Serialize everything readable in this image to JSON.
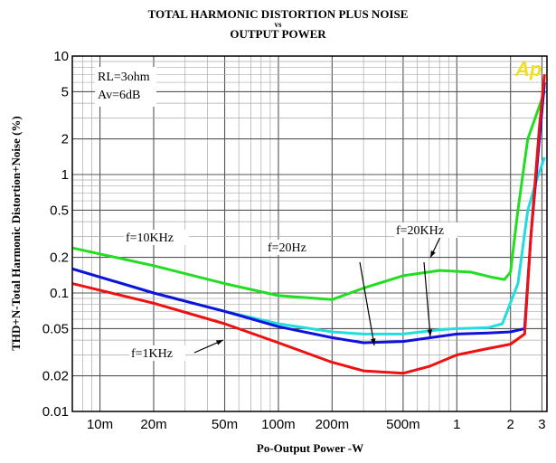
{
  "chart_data": {
    "type": "line",
    "title": "TOTAL HARMONIC DISTORTION PLUS NOISE",
    "title_vs": "vs",
    "subtitle": "OUTPUT POWER",
    "xlabel": "Po-Output Power -W",
    "ylabel": "THD+N-Total Harmonic Distortion+Noise (%)",
    "x_scale": "log",
    "y_scale": "log",
    "xlim": [
      0.007,
      3.2
    ],
    "ylim": [
      0.01,
      10
    ],
    "grid": true,
    "x_ticks": [
      {
        "v": 0.01,
        "label": "10m"
      },
      {
        "v": 0.02,
        "label": "20m"
      },
      {
        "v": 0.05,
        "label": "50m"
      },
      {
        "v": 0.1,
        "label": "100m"
      },
      {
        "v": 0.2,
        "label": "200m"
      },
      {
        "v": 0.5,
        "label": "500m"
      },
      {
        "v": 1,
        "label": "1"
      },
      {
        "v": 2,
        "label": "2"
      },
      {
        "v": 3,
        "label": "3"
      }
    ],
    "y_ticks": [
      {
        "v": 10,
        "label": "10"
      },
      {
        "v": 5,
        "label": "5"
      },
      {
        "v": 2,
        "label": "2"
      },
      {
        "v": 1,
        "label": "1"
      },
      {
        "v": 0.5,
        "label": "0.5"
      },
      {
        "v": 0.2,
        "label": "0.2"
      },
      {
        "v": 0.1,
        "label": "0.1"
      },
      {
        "v": 0.05,
        "label": "0.05"
      },
      {
        "v": 0.02,
        "label": "0.02"
      },
      {
        "v": 0.01,
        "label": "0.01"
      }
    ],
    "conditions": [
      "RL=3ohm",
      "Av=6dB"
    ],
    "logo": "Ap",
    "series": [
      {
        "name": "f=10KHz",
        "color": "#22dd22",
        "points": [
          [
            0.007,
            0.24
          ],
          [
            0.02,
            0.17
          ],
          [
            0.05,
            0.12
          ],
          [
            0.1,
            0.095
          ],
          [
            0.2,
            0.088
          ],
          [
            0.3,
            0.11
          ],
          [
            0.5,
            0.14
          ],
          [
            0.8,
            0.155
          ],
          [
            1.2,
            0.15
          ],
          [
            1.6,
            0.135
          ],
          [
            1.85,
            0.13
          ],
          [
            2.0,
            0.15
          ],
          [
            2.2,
            0.5
          ],
          [
            2.5,
            2.0
          ],
          [
            3.1,
            5.0
          ]
        ]
      },
      {
        "name": "f=1KHz",
        "color": "#ee1111",
        "points": [
          [
            0.007,
            0.12
          ],
          [
            0.02,
            0.082
          ],
          [
            0.05,
            0.055
          ],
          [
            0.1,
            0.038
          ],
          [
            0.2,
            0.026
          ],
          [
            0.3,
            0.022
          ],
          [
            0.5,
            0.021
          ],
          [
            0.7,
            0.024
          ],
          [
            1.0,
            0.03
          ],
          [
            1.5,
            0.034
          ],
          [
            2.0,
            0.037
          ],
          [
            2.4,
            0.045
          ],
          [
            2.6,
            0.3
          ],
          [
            2.9,
            2.5
          ],
          [
            3.1,
            7.0
          ]
        ]
      },
      {
        "name": "f=20Hz",
        "color": "#1111dd",
        "points": [
          [
            0.007,
            0.16
          ],
          [
            0.02,
            0.1
          ],
          [
            0.05,
            0.07
          ],
          [
            0.1,
            0.052
          ],
          [
            0.2,
            0.042
          ],
          [
            0.3,
            0.038
          ],
          [
            0.5,
            0.039
          ],
          [
            0.8,
            0.043
          ],
          [
            1.0,
            0.045
          ],
          [
            1.5,
            0.046
          ],
          [
            2.0,
            0.047
          ],
          [
            2.4,
            0.05
          ],
          [
            2.6,
            0.3
          ],
          [
            2.9,
            2.0
          ],
          [
            3.1,
            6.0
          ]
        ]
      },
      {
        "name": "f=20KHz",
        "color": "#22dddd",
        "points": [
          [
            0.007,
            0.16
          ],
          [
            0.02,
            0.1
          ],
          [
            0.05,
            0.07
          ],
          [
            0.1,
            0.055
          ],
          [
            0.2,
            0.047
          ],
          [
            0.3,
            0.045
          ],
          [
            0.5,
            0.045
          ],
          [
            0.8,
            0.049
          ],
          [
            1.0,
            0.05
          ],
          [
            1.5,
            0.051
          ],
          [
            1.8,
            0.055
          ],
          [
            2.2,
            0.12
          ],
          [
            2.5,
            0.5
          ],
          [
            2.8,
            0.9
          ],
          [
            3.1,
            1.4
          ]
        ]
      }
    ]
  }
}
